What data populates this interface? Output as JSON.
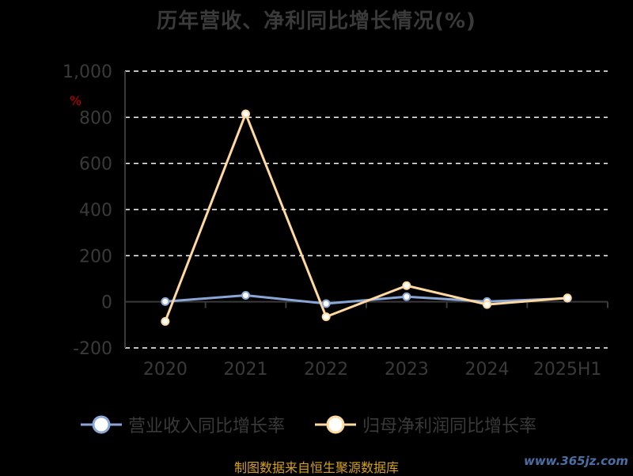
{
  "chart_data": {
    "type": "line",
    "title": "历年营收、净利同比增长情况(%)",
    "ylabel": "%",
    "categories": [
      "2020",
      "2021",
      "2022",
      "2023",
      "2024",
      "2025H1"
    ],
    "ylim": [
      -200,
      1000
    ],
    "yticks": [
      -200,
      0,
      200,
      400,
      600,
      800,
      1000
    ],
    "ytick_labels": [
      "-200",
      "0",
      "200",
      "400",
      "600",
      "800",
      "1,000"
    ],
    "grid": true,
    "legend_position": "bottom",
    "series": [
      {
        "name": "营业收入同比增长率",
        "color": "#8aa6d6",
        "values": [
          1,
          28,
          -8,
          22,
          1,
          15
        ]
      },
      {
        "name": "归母净利润同比增长率",
        "color": "#ffd9a0",
        "values": [
          -85,
          815,
          -65,
          70,
          -12,
          17
        ]
      }
    ]
  },
  "source": "制图数据来自恒生聚源数据库",
  "watermark": "www.365jz.com"
}
